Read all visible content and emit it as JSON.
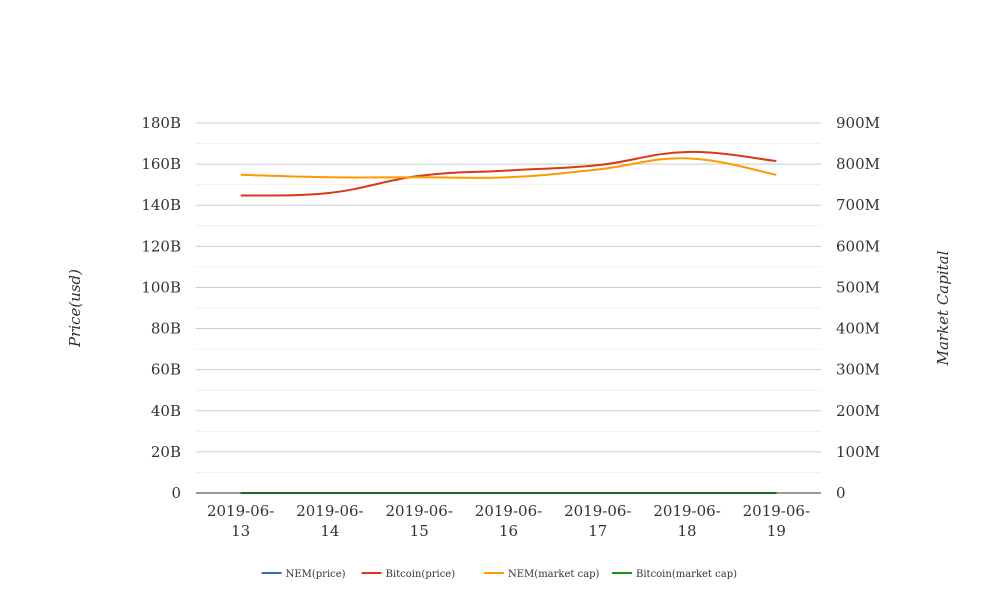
{
  "chart_data": {
    "type": "line",
    "title": "",
    "x_categories": [
      "2019-06-13",
      "2019-06-14",
      "2019-06-15",
      "2019-06-16",
      "2019-06-17",
      "2019-06-18",
      "2019-06-19"
    ],
    "x_tick_lines": [
      [
        "2019-06-",
        "13"
      ],
      [
        "2019-06-",
        "14"
      ],
      [
        "2019-06-",
        "15"
      ],
      [
        "2019-06-",
        "16"
      ],
      [
        "2019-06-",
        "17"
      ],
      [
        "2019-06-",
        "18"
      ],
      [
        "2019-06-",
        "19"
      ]
    ],
    "y_left": {
      "label": "Price(usd)",
      "range": [
        0,
        180000000000
      ],
      "ticks": [
        {
          "value": 0,
          "label": "0"
        },
        {
          "value": 20000000000,
          "label": "20B"
        },
        {
          "value": 40000000000,
          "label": "40B"
        },
        {
          "value": 60000000000,
          "label": "60B"
        },
        {
          "value": 80000000000,
          "label": "80B"
        },
        {
          "value": 100000000000,
          "label": "100B"
        },
        {
          "value": 120000000000,
          "label": "120B"
        },
        {
          "value": 140000000000,
          "label": "140B"
        },
        {
          "value": 160000000000,
          "label": "160B"
        },
        {
          "value": 180000000000,
          "label": "180B"
        }
      ]
    },
    "y_right": {
      "label": "Market Capital",
      "range": [
        0,
        900000000
      ],
      "ticks": [
        {
          "value": 0,
          "label": "0"
        },
        {
          "value": 100000000,
          "label": "100M"
        },
        {
          "value": 200000000,
          "label": "200M"
        },
        {
          "value": 300000000,
          "label": "300M"
        },
        {
          "value": 400000000,
          "label": "400M"
        },
        {
          "value": 500000000,
          "label": "500M"
        },
        {
          "value": 600000000,
          "label": "600M"
        },
        {
          "value": 700000000,
          "label": "700M"
        },
        {
          "value": 800000000,
          "label": "800M"
        },
        {
          "value": 900000000,
          "label": "900M"
        }
      ]
    },
    "grid": true,
    "legend_position": "bottom",
    "series": [
      {
        "name": "NEM(price)",
        "color": "#3366cc",
        "axis": "left",
        "values": [
          0.09,
          0.088,
          0.087,
          0.087,
          0.088,
          0.092,
          0.086
        ]
      },
      {
        "name": "Bitcoin(price)",
        "color": "#dc3912",
        "axis": "left",
        "values": [
          144700000000,
          146000000000,
          154300000000,
          156900000000,
          159500000000,
          165900000000,
          161500000000
        ]
      },
      {
        "name": "NEM(market cap)",
        "color": "#ff9900",
        "axis": "right",
        "values": [
          774000000,
          768000000,
          768000000,
          768000000,
          787000000,
          814000000,
          774000000
        ]
      },
      {
        "name": "Bitcoin(market cap)",
        "color": "#109618",
        "axis": "right",
        "values": [
          8150,
          8180,
          8650,
          8780,
          8950,
          9300,
          9050
        ]
      }
    ]
  }
}
